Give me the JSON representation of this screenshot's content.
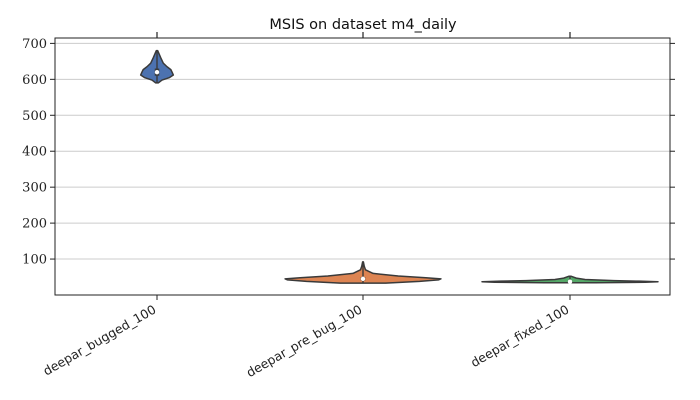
{
  "chart_data": {
    "type": "violin",
    "title": "MSIS on dataset m4_daily",
    "xlabel": "",
    "ylabel": "",
    "ylim": [
      0,
      715
    ],
    "yticks": [
      100,
      200,
      300,
      400,
      500,
      600,
      700
    ],
    "grid": "horizontal",
    "categories": [
      "deepar_bugged_100",
      "deepar_pre_bug_100",
      "deepar_fixed_100"
    ],
    "colors": [
      "#4c72b0",
      "#dd8452",
      "#55a868"
    ],
    "series": [
      {
        "min": 590,
        "q1": 610,
        "median": 620,
        "q3": 630,
        "max": 680,
        "density": [
          [
            590,
            1
          ],
          [
            598,
            4
          ],
          [
            605,
            10
          ],
          [
            612,
            13
          ],
          [
            620,
            12
          ],
          [
            627,
            11
          ],
          [
            635,
            8
          ],
          [
            645,
            5
          ],
          [
            660,
            3
          ],
          [
            672,
            1.5
          ],
          [
            680,
            0.5
          ]
        ]
      },
      {
        "min": 33,
        "q1": 40,
        "median": 45,
        "q3": 50,
        "max": 92,
        "density": [
          [
            33,
            18
          ],
          [
            38,
            45
          ],
          [
            42,
            60
          ],
          [
            45,
            62
          ],
          [
            48,
            50
          ],
          [
            53,
            28
          ],
          [
            60,
            8
          ],
          [
            70,
            2
          ],
          [
            80,
            1
          ],
          [
            92,
            0.3
          ]
        ]
      },
      {
        "min": 34,
        "q1": 36,
        "median": 37,
        "q3": 39,
        "max": 52,
        "density": [
          [
            34,
            20
          ],
          [
            35.5,
            60
          ],
          [
            37,
            70
          ],
          [
            38.5,
            55
          ],
          [
            40,
            35
          ],
          [
            43,
            12
          ],
          [
            47,
            5
          ],
          [
            52,
            1
          ]
        ]
      }
    ]
  }
}
